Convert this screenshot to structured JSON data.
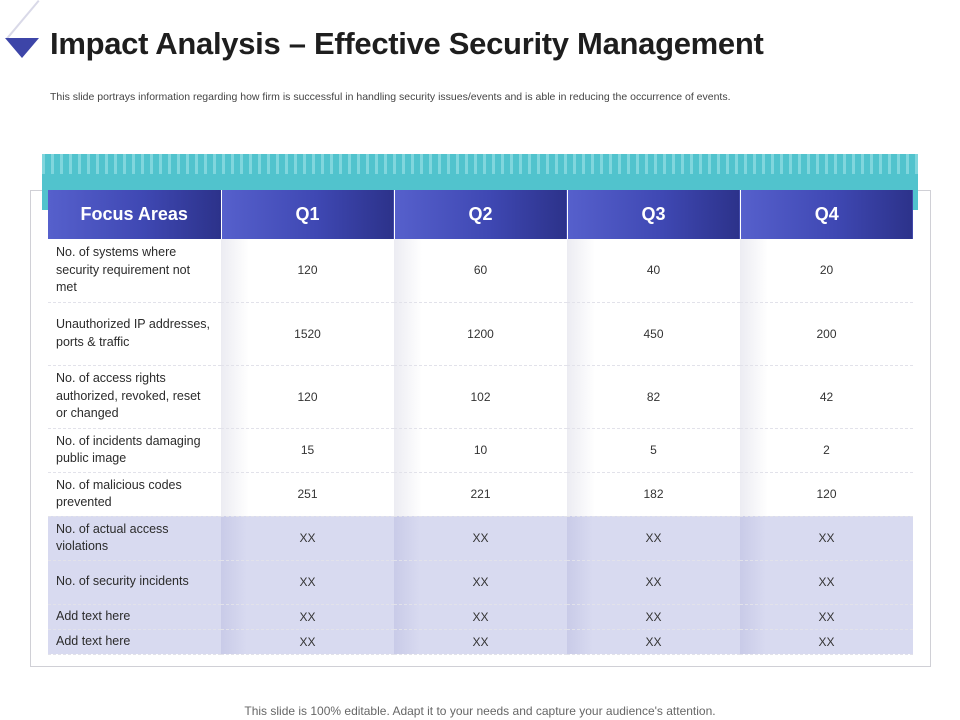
{
  "header": {
    "title": "Impact Analysis – Effective Security Management",
    "subtitle": "This slide portrays information regarding how firm is successful in handling security issues/events and is able in reducing the occurrence of events."
  },
  "table": {
    "columns": [
      "Focus Areas",
      "Q1",
      "Q2",
      "Q3",
      "Q4"
    ],
    "rows": [
      {
        "area": "No. of systems where security requirement not met",
        "q1": "120",
        "q2": "60",
        "q3": "40",
        "q4": "20"
      },
      {
        "area": "Unauthorized IP addresses, ports & traffic",
        "q1": "1520",
        "q2": "1200",
        "q3": "450",
        "q4": "200"
      },
      {
        "area": "No. of access rights authorized, revoked, reset or changed",
        "q1": "120",
        "q2": "102",
        "q3": "82",
        "q4": "42"
      },
      {
        "area": "No. of incidents damaging public image",
        "q1": "15",
        "q2": "10",
        "q3": "5",
        "q4": "2"
      },
      {
        "area": "No. of malicious codes prevented",
        "q1": "251",
        "q2": "221",
        "q3": "182",
        "q4": "120"
      },
      {
        "area": "No. of actual access violations",
        "q1": "XX",
        "q2": "XX",
        "q3": "XX",
        "q4": "XX"
      },
      {
        "area": "No. of security incidents",
        "q1": "XX",
        "q2": "XX",
        "q3": "XX",
        "q4": "XX"
      },
      {
        "area": "Add text here",
        "q1": "XX",
        "q2": "XX",
        "q3": "XX",
        "q4": "XX"
      },
      {
        "area": "Add text here",
        "q1": "XX",
        "q2": "XX",
        "q3": "XX",
        "q4": "XX"
      }
    ]
  },
  "footer": {
    "text": "This slide is 100% editable. Adapt it to your needs and capture your audience's attention."
  },
  "colors": {
    "header_gradient_start": "#5660cc",
    "header_gradient_end": "#2c328a",
    "accent_teal": "#51c3cd",
    "shaded_row": "#d8daf0",
    "triangle": "#3d45a8"
  }
}
